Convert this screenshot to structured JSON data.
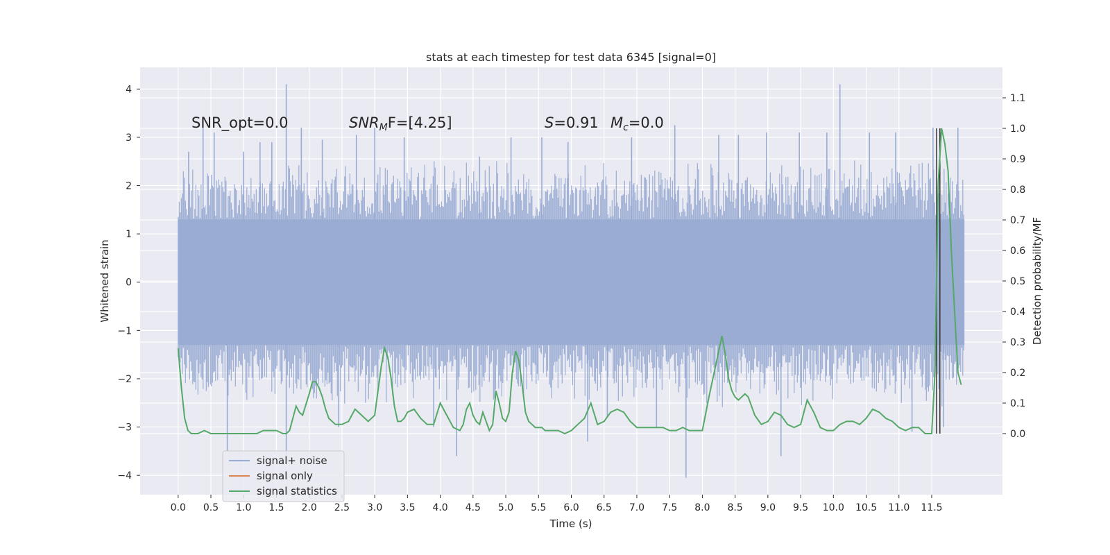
{
  "chart_data": {
    "type": "line",
    "title": "stats at each timestep for test data 6345 [signal=0]",
    "xlabel": "Time (s)",
    "ylabel": "Whitened strain",
    "y2label": "Detection probability/MF",
    "xlim": [
      -0.58,
      12.58
    ],
    "ylim": [
      -4.4,
      4.45
    ],
    "y2lim": [
      -0.2,
      1.2
    ],
    "x_ticks": [
      "0.0",
      "0.5",
      "1.0",
      "1.5",
      "2.0",
      "2.5",
      "3.0",
      "3.5",
      "4.0",
      "4.5",
      "5.0",
      "5.5",
      "6.0",
      "6.5",
      "7.0",
      "7.5",
      "8.0",
      "8.5",
      "9.0",
      "9.5",
      "10.0",
      "10.5",
      "11.0",
      "11.5"
    ],
    "y_ticks": [
      "4",
      "3",
      "2",
      "1",
      "0",
      "−1",
      "−2",
      "−3",
      "−4"
    ],
    "y2_ticks": [
      "1.1",
      "1.0",
      "0.9",
      "0.8",
      "0.7",
      "0.6",
      "0.5",
      "0.4",
      "0.3",
      "0.2",
      "0.1",
      "0.0"
    ],
    "grid": true,
    "legend_position": "lower-left",
    "annotations": {
      "snr_opt": "SNR_opt=0.0",
      "snr_mf_main": "SNR",
      "snr_mf_sub": "M",
      "snr_mf_rest": "F=[4.25]",
      "s_main": "S",
      "s_rest": "=0.91",
      "mc_main": "M",
      "mc_sub": "c",
      "mc_rest": "=0.0"
    },
    "series": [
      {
        "name": "signal+ noise",
        "color": "#9aacd3",
        "style": "dense noise band",
        "x_range": [
          0.0,
          12.0
        ],
        "envelope": {
          "mean": 0.0,
          "core_upper": 1.3,
          "core_lower": -1.3,
          "typical_max": 2.6,
          "typical_min": -2.6
        },
        "spikes": [
          [
            0.16,
            2.7
          ],
          [
            0.38,
            3.2
          ],
          [
            0.55,
            3.1
          ],
          [
            0.75,
            -3.5
          ],
          [
            1.0,
            2.7
          ],
          [
            1.25,
            2.9
          ],
          [
            1.43,
            2.9
          ],
          [
            1.65,
            4.1
          ],
          [
            1.65,
            -3.6
          ],
          [
            1.88,
            3.2
          ],
          [
            2.2,
            2.95
          ],
          [
            2.45,
            -3.0
          ],
          [
            2.72,
            3.05
          ],
          [
            3.0,
            3.2
          ],
          [
            3.45,
            3.0
          ],
          [
            3.9,
            -3.0
          ],
          [
            4.25,
            -3.6
          ],
          [
            4.6,
            2.6
          ],
          [
            5.08,
            3.0
          ],
          [
            5.55,
            3.0
          ],
          [
            5.95,
            2.9
          ],
          [
            6.25,
            -3.3
          ],
          [
            6.55,
            -2.8
          ],
          [
            6.92,
            3.0
          ],
          [
            7.3,
            -3.0
          ],
          [
            7.58,
            3.25
          ],
          [
            7.75,
            -4.05
          ],
          [
            8.25,
            3.05
          ],
          [
            8.55,
            3.05
          ],
          [
            8.98,
            3.1
          ],
          [
            9.2,
            -3.6
          ],
          [
            9.48,
            3.1
          ],
          [
            9.9,
            3.1
          ],
          [
            10.1,
            4.1
          ],
          [
            10.55,
            3.1
          ],
          [
            10.95,
            3.1
          ],
          [
            11.2,
            -3.1
          ],
          [
            11.52,
            3.2
          ],
          [
            11.68,
            -3.0
          ],
          [
            11.9,
            3.2
          ]
        ]
      },
      {
        "name": "signal only",
        "color": "#dd8452",
        "x": [],
        "y": []
      },
      {
        "name": "signal statistics",
        "color": "#55a868",
        "axis": "right",
        "x": [
          0.0,
          0.05,
          0.1,
          0.15,
          0.2,
          0.25,
          0.3,
          0.4,
          0.5,
          0.6,
          0.7,
          0.8,
          0.9,
          1.0,
          1.1,
          1.2,
          1.3,
          1.4,
          1.5,
          1.6,
          1.65,
          1.7,
          1.75,
          1.8,
          1.85,
          1.9,
          2.0,
          2.05,
          2.1,
          2.15,
          2.2,
          2.25,
          2.3,
          2.35,
          2.4,
          2.5,
          2.6,
          2.7,
          2.8,
          2.9,
          3.0,
          3.1,
          3.15,
          3.2,
          3.25,
          3.3,
          3.35,
          3.4,
          3.45,
          3.5,
          3.6,
          3.7,
          3.8,
          3.9,
          4.0,
          4.1,
          4.2,
          4.3,
          4.35,
          4.4,
          4.45,
          4.5,
          4.55,
          4.6,
          4.65,
          4.7,
          4.75,
          4.8,
          4.85,
          4.9,
          4.95,
          5.0,
          5.05,
          5.1,
          5.15,
          5.2,
          5.25,
          5.3,
          5.35,
          5.4,
          5.45,
          5.5,
          5.55,
          5.6,
          5.65,
          5.7,
          5.75,
          5.8,
          5.9,
          6.0,
          6.1,
          6.2,
          6.3,
          6.4,
          6.5,
          6.6,
          6.7,
          6.8,
          6.9,
          7.0,
          7.1,
          7.2,
          7.3,
          7.4,
          7.5,
          7.6,
          7.7,
          7.8,
          7.9,
          8.0,
          8.1,
          8.2,
          8.3,
          8.35,
          8.4,
          8.45,
          8.5,
          8.55,
          8.6,
          8.65,
          8.7,
          8.8,
          8.9,
          9.0,
          9.1,
          9.2,
          9.3,
          9.4,
          9.5,
          9.6,
          9.7,
          9.8,
          9.9,
          10.0,
          10.1,
          10.2,
          10.3,
          10.4,
          10.5,
          10.6,
          10.7,
          10.8,
          10.9,
          11.0,
          11.1,
          11.2,
          11.3,
          11.4,
          11.45,
          11.5,
          11.55,
          11.6,
          11.65,
          11.7,
          11.75,
          11.8,
          11.85,
          11.9,
          11.95
        ],
        "y": [
          0.28,
          0.15,
          0.05,
          0.01,
          0.0,
          0.0,
          0.0,
          0.01,
          0.0,
          0.0,
          0.0,
          0.0,
          0.0,
          0.0,
          0.0,
          0.0,
          0.01,
          0.01,
          0.01,
          0.0,
          0.0,
          0.01,
          0.05,
          0.09,
          0.07,
          0.06,
          0.13,
          0.17,
          0.17,
          0.15,
          0.12,
          0.08,
          0.05,
          0.04,
          0.03,
          0.03,
          0.04,
          0.08,
          0.06,
          0.04,
          0.06,
          0.22,
          0.28,
          0.25,
          0.18,
          0.09,
          0.04,
          0.04,
          0.05,
          0.07,
          0.08,
          0.05,
          0.03,
          0.03,
          0.1,
          0.06,
          0.02,
          0.01,
          0.03,
          0.08,
          0.1,
          0.06,
          0.04,
          0.03,
          0.07,
          0.04,
          0.01,
          0.03,
          0.14,
          0.1,
          0.05,
          0.04,
          0.07,
          0.2,
          0.27,
          0.24,
          0.16,
          0.07,
          0.04,
          0.03,
          0.02,
          0.02,
          0.02,
          0.01,
          0.01,
          0.01,
          0.01,
          0.01,
          0.0,
          0.01,
          0.03,
          0.05,
          0.1,
          0.03,
          0.04,
          0.07,
          0.08,
          0.07,
          0.04,
          0.02,
          0.02,
          0.02,
          0.02,
          0.02,
          0.01,
          0.01,
          0.02,
          0.01,
          0.01,
          0.01,
          0.12,
          0.22,
          0.32,
          0.26,
          0.18,
          0.14,
          0.12,
          0.11,
          0.12,
          0.13,
          0.12,
          0.06,
          0.03,
          0.04,
          0.07,
          0.06,
          0.03,
          0.02,
          0.03,
          0.11,
          0.07,
          0.02,
          0.01,
          0.01,
          0.03,
          0.04,
          0.04,
          0.03,
          0.05,
          0.08,
          0.07,
          0.05,
          0.04,
          0.02,
          0.01,
          0.02,
          0.02,
          0.0,
          0.0,
          0.0,
          0.2,
          0.82,
          1.0,
          0.95,
          0.86,
          0.6,
          0.4,
          0.2,
          0.16
        ]
      }
    ],
    "marker_line": {
      "x": 11.6,
      "y2_from": 0.0,
      "y2_to": 1.0,
      "color": "#333333"
    }
  }
}
